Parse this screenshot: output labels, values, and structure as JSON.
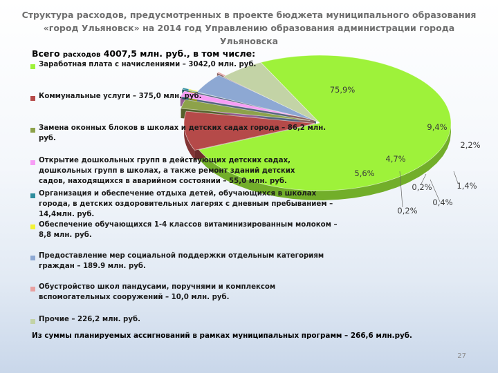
{
  "title": "Структура расходов, предусмотренных в проекте бюджета муниципального образования «город Ульяновск» на 2014 год Управлению образования администрации города Ульяновска",
  "total_label_prefix": "Всего",
  "total_label_small": "расходов",
  "total_label_value": "4007,5 млн. руб., в том числе:",
  "footer": "Из суммы планируемых ассигнований в рамках муниципальных программ – 266,6 млн.руб.",
  "page_number": "27",
  "chart_data": {
    "type": "pie",
    "total": 4007.5,
    "unit": "млн. руб.",
    "slices": [
      {
        "label": "Заработная плата с начислениями – 3042,0 млн. руб.",
        "value": 3042.0,
        "percent_label": "75,9%",
        "color": "#9ef23a"
      },
      {
        "label": "Коммунальные услуги – 375,0 млн. руб.",
        "value": 375.0,
        "percent_label": "9,4%",
        "color": "#b54a49"
      },
      {
        "label": "Замена оконных блоков в школах и детских садах города – 86,2 млн. руб.",
        "value": 86.2,
        "percent_label": "2,2%",
        "color": "#8da24a"
      },
      {
        "label": "Открытие дошкольных групп в действующих детских садах, дошкольных групп в школах, а также ремонт зданий детских садов, находящихся в аварийном состоянии – 55,0 млн. руб.",
        "value": 55.0,
        "percent_label": "1,4%",
        "color": "#f79df5"
      },
      {
        "label": "Организация и обеспечение отдыха детей, обучающихся в школах города, в детских оздоровительных лагерях с дневным пребыванием – 14,4млн. руб.",
        "value": 14.4,
        "percent_label": "0,4%",
        "color": "#2f8e9e"
      },
      {
        "label": "Обеспечение обучающихся 1-4 классов витаминизированным молоком – 8,8 млн. руб.",
        "value": 8.8,
        "percent_label": "0,2%",
        "color": "#f2f236"
      },
      {
        "label": "Предоставление мер социальной поддержки отдельным категориям граждан – 189.9 млн. руб.",
        "value": 189.9,
        "percent_label": "4,7%",
        "color": "#8da8d3"
      },
      {
        "label": "Обустройство школ пандусами, поручнями и комплексом вспомогательных сооружений – 10,0 млн. руб.",
        "value": 10.0,
        "percent_label": "0,2%",
        "color": "#e8a0a0"
      },
      {
        "label": "Прочие – 226,2 млн. руб.",
        "value": 226.2,
        "percent_label": "5,6%",
        "color": "#c3d3a6"
      }
    ]
  }
}
